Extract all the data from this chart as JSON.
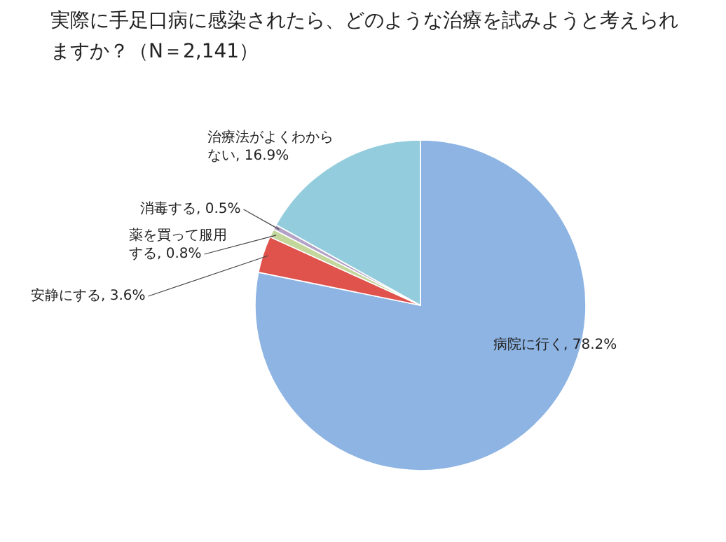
{
  "chart_data": {
    "type": "pie",
    "title": "実際に手足口病に感染されたら、どのような治療を試みようと考えられますか？（N＝2,141）",
    "categories": [
      "病院に行く",
      "安静にする",
      "薬を買って服用する",
      "消毒する",
      "治療法がよくわからない"
    ],
    "values": [
      78.2,
      3.6,
      0.8,
      0.5,
      16.9
    ],
    "value_labels": [
      "78.2%",
      "3.6%",
      "0.8%",
      "0.5%",
      "16.9%"
    ],
    "colors": [
      "#8eb4e3",
      "#e0524c",
      "#c3d69b",
      "#b3a2c7",
      "#93cddd"
    ]
  }
}
